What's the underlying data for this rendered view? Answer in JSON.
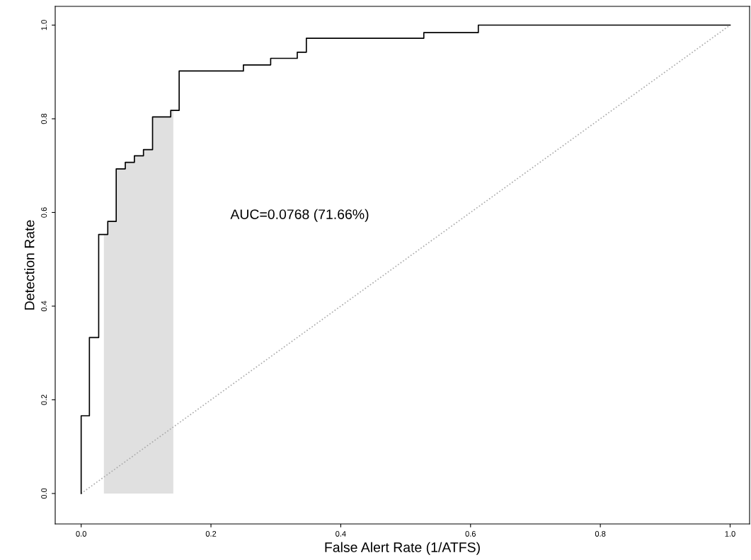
{
  "chart_data": {
    "type": "step",
    "xlabel": "False Alert Rate (1/ATFS)",
    "ylabel": "Detection Rate",
    "xlim": [
      -0.04,
      1.03
    ],
    "ylim": [
      -0.065,
      1.04
    ],
    "xticks": [
      {
        "value": 0,
        "label": "0.0"
      },
      0.2,
      0.4,
      0.6,
      0.8,
      {
        "value": 1,
        "label": "1.0"
      }
    ],
    "yticks": [
      {
        "value": 0,
        "label": "0.0"
      },
      0.2,
      0.4,
      0.6,
      0.8,
      {
        "value": 1,
        "label": "1.0"
      }
    ],
    "grid": false,
    "legend": false,
    "annotations": [
      "AUC=0.0768 (71.66%)"
    ],
    "series": [
      {
        "type": "area",
        "color": "#e0e0e0",
        "x": [
          0.035,
          0.041,
          0.041,
          0.054,
          0.054,
          0.068,
          0.068,
          0.082,
          0.082,
          0.096,
          0.096,
          0.11,
          0.11,
          0.138,
          0.138,
          0.142
        ],
        "values": [
          0.553,
          0.553,
          0.581,
          0.581,
          0.693,
          0.693,
          0.707,
          0.707,
          0.721,
          0.721,
          0.734,
          0.734,
          0.804,
          0.804,
          0.818,
          0.818
        ]
      },
      {
        "type": "line",
        "color": "#aaaaaa",
        "line_style": "dotted",
        "x": [
          0,
          1
        ],
        "values": [
          0,
          1
        ]
      },
      {
        "color": "#000000",
        "x": [
          0,
          0,
          0.0127,
          0.027,
          0.041,
          0.054,
          0.068,
          0.082,
          0.096,
          0.11,
          0.138,
          0.151,
          0.25,
          0.292,
          0.333,
          0.347,
          0.528,
          0.612,
          1.0
        ],
        "values": [
          0,
          0.166,
          0.333,
          0.553,
          0.581,
          0.693,
          0.707,
          0.721,
          0.734,
          0.804,
          0.818,
          0.902,
          0.915,
          0.929,
          0.942,
          0.972,
          0.984,
          1.0,
          1.0
        ]
      }
    ]
  }
}
